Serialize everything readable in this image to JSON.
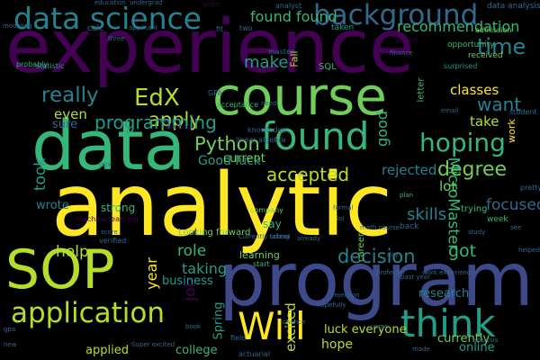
{
  "background_color": "#000000",
  "palette": {
    "yellow": "#fde725",
    "lime": "#b5de2b",
    "green": "#6ece58",
    "teal_green": "#35b779",
    "teal": "#1f9e89",
    "cyan_blue": "#26828e",
    "blue": "#31688e",
    "indigo": "#3e4989",
    "purple": "#482878",
    "dark_purple": "#440154"
  },
  "words": [
    "experience",
    "analytic",
    "program",
    "course",
    "data",
    "SOP",
    "found",
    "data science",
    "background",
    "application",
    "think",
    "Will",
    "hoping",
    "EdX",
    "Python",
    "degree",
    "accepted",
    "decision",
    "really",
    "apply",
    "time",
    "programming",
    "math",
    "took",
    "good",
    "MicroMaster",
    "job",
    "year",
    "excited",
    "Spring",
    "Fall",
    "work",
    "career",
    "letter",
    "found found",
    "recommendation",
    "make",
    "want",
    "classes",
    "got",
    "role",
    "taking",
    "help",
    "strong",
    "even",
    "sure",
    "wrote",
    "skills",
    "rejected",
    "focused",
    "take",
    "lot",
    "Good luck",
    "current",
    "luck everyone",
    "hope",
    "research",
    "currently",
    "applied",
    "college",
    "online",
    "business",
    "learning",
    "say",
    "SQL",
    "taken",
    "Looking forward",
    "received",
    "opportunity",
    "data analysis",
    "admission",
    "analyst",
    "undergrad",
    "point",
    "working",
    "acceptance",
    "GPA",
    "master",
    "knowledge",
    "linear algebra",
    "plan",
    "back",
    "pretty",
    "student",
    "statistic",
    "project",
    "probably",
    "surprised",
    "school",
    "company",
    "start",
    "field",
    "chance",
    "professor",
    "email",
    "analysis",
    "past year",
    "work experience",
    "hopefully",
    "actuarial",
    "Currently taking",
    "already",
    "come",
    "machine learning",
    "verified",
    "modeling",
    "calc",
    "applicant",
    "fit",
    "two",
    "three",
    "need",
    "finance",
    "lack",
    "track",
    "education",
    "gpa",
    "new",
    "math course",
    "Super excited",
    "day",
    "score",
    "rejection",
    "helped",
    "see",
    "week",
    "trying",
    "study",
    "formal",
    "lol",
    "book",
    "made"
  ]
}
